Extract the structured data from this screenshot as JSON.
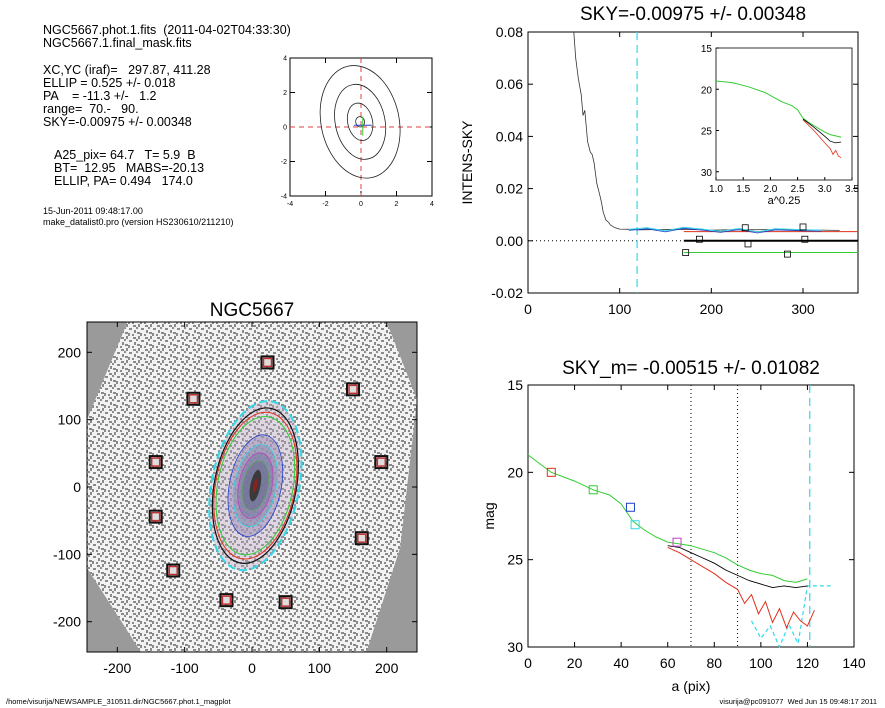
{
  "header_info": {
    "lines_a": [
      "NGC5667.phot.1.fits  (2011-04-02T04:33:30)",
      "NGC5667.1.final_mask.fits"
    ],
    "lines_b": [
      "XC,YC (iraf)=   297.87, 411.28",
      "ELLIP = 0.525 +/- 0.018",
      "PA    = -11.3 +/-   1.2",
      "range=  70.-   90.",
      "SKY=-0.00975 +/- 0.00348"
    ],
    "lines_c": [
      "A25_pix= 64.7   T= 5.9  B",
      "BT=  12.95   MABS=-20.13",
      "ELLIP, PA= 0.494   174.0"
    ],
    "lines_d": [
      "15-Jun-2011 09:48:17.00",
      "make_datalist0.pro (version HS230610/211210)"
    ]
  },
  "footer": {
    "left": "/home/visurija/NEWSAMPLE_310511.dir/NGC5667.phot.1_magplot",
    "right": "visurija@pc091077  Wed Jun 15 09:48:17 2011"
  },
  "colors": {
    "black": "#000000",
    "red": "#e0301e",
    "green": "#33cc33",
    "blue": "#2040d0",
    "cyan": "#30d8e8",
    "magenta": "#c040c0",
    "gray": "#999999",
    "redline": "#e04040"
  },
  "chart_data": [
    {
      "id": "contour",
      "type": "contour",
      "xlim": [
        -4,
        4
      ],
      "ylim": [
        -4,
        4
      ],
      "xticks": [
        "-4",
        "-2",
        "0",
        "2",
        "4"
      ],
      "yticks": [
        "-4",
        "-2",
        "0",
        "2",
        "4"
      ]
    },
    {
      "id": "sky",
      "type": "line",
      "title": "SKY=-0.00975 +/- 0.00348",
      "xlabel": "",
      "ylabel": "INTENS-SKY",
      "xlim": [
        0,
        360
      ],
      "ylim": [
        -0.02,
        0.08
      ],
      "xticks": [
        "0",
        "100",
        "200",
        "300"
      ],
      "yticks": [
        "-0.02",
        "0.00",
        "0.02",
        "0.04",
        "0.06",
        "0.08"
      ],
      "cyan_dashed_x": 119,
      "profile": [
        [
          50,
          0.08
        ],
        [
          52,
          0.07
        ],
        [
          55,
          0.062
        ],
        [
          58,
          0.056
        ],
        [
          60,
          0.048
        ],
        [
          62,
          0.05
        ],
        [
          65,
          0.038
        ],
        [
          68,
          0.034
        ],
        [
          70,
          0.033
        ],
        [
          72,
          0.03
        ],
        [
          75,
          0.022
        ],
        [
          78,
          0.018
        ],
        [
          80,
          0.015
        ],
        [
          82,
          0.011
        ],
        [
          85,
          0.008
        ],
        [
          88,
          0.007
        ],
        [
          90,
          0.006
        ],
        [
          95,
          0.005
        ],
        [
          100,
          0.0045
        ],
        [
          110,
          0.0044
        ],
        [
          120,
          0.0042
        ],
        [
          140,
          0.0043
        ],
        [
          160,
          0.0044
        ],
        [
          180,
          0.0043
        ],
        [
          200,
          0.0041
        ],
        [
          220,
          0.0042
        ],
        [
          240,
          0.0042
        ],
        [
          260,
          0.0043
        ],
        [
          280,
          0.0042
        ],
        [
          300,
          0.0041
        ],
        [
          320,
          0.0041
        ],
        [
          340,
          0.004
        ]
      ],
      "boxes": [
        [
          172,
          -0.0045
        ],
        [
          187,
          0.0006
        ],
        [
          237,
          0.005
        ],
        [
          240,
          -0.0012
        ],
        [
          283,
          -0.0051
        ],
        [
          300,
          0.0053
        ],
        [
          302,
          0.0006
        ]
      ],
      "inset": {
        "xlabel": "a^0.25",
        "xlim": [
          1.0,
          3.5
        ],
        "ylim": [
          15,
          31
        ],
        "xticks": [
          "1.0",
          "1.5",
          "2.0",
          "2.5",
          "3.0",
          "3.5"
        ],
        "yticks": [
          "15",
          "20",
          "25",
          "30"
        ],
        "green": [
          [
            1.0,
            19.0
          ],
          [
            1.3,
            19.2
          ],
          [
            1.6,
            19.7
          ],
          [
            1.9,
            20.4
          ],
          [
            2.2,
            21.5
          ],
          [
            2.4,
            22.0
          ],
          [
            2.5,
            22.5
          ],
          [
            2.6,
            23.5
          ],
          [
            2.7,
            24.0
          ],
          [
            2.8,
            24.4
          ],
          [
            2.9,
            24.8
          ],
          [
            3.0,
            25.2
          ],
          [
            3.1,
            25.5
          ],
          [
            3.3,
            25.8
          ]
        ],
        "black": [
          [
            2.6,
            23.6
          ],
          [
            2.8,
            24.6
          ],
          [
            3.0,
            25.7
          ],
          [
            3.1,
            26.3
          ],
          [
            3.2,
            26.5
          ],
          [
            3.3,
            26.4
          ]
        ],
        "red": [
          [
            2.6,
            23.7
          ],
          [
            2.8,
            25.0
          ],
          [
            3.0,
            26.5
          ],
          [
            3.1,
            27.2
          ],
          [
            3.15,
            27.9
          ],
          [
            3.2,
            27.4
          ],
          [
            3.25,
            28.1
          ],
          [
            3.3,
            28.3
          ]
        ]
      }
    },
    {
      "id": "image",
      "type": "image",
      "title": "NGC5667",
      "xlim": [
        -245,
        245
      ],
      "ylim": [
        -245,
        245
      ],
      "xticks": [
        "-200",
        "-100",
        "0",
        "100",
        "200"
      ],
      "yticks": [
        "-200",
        "-100",
        "0",
        "100",
        "200"
      ],
      "mask_boxes": [
        [
          23,
          185
        ],
        [
          -87,
          131
        ],
        [
          150,
          145
        ],
        [
          -143,
          37
        ],
        [
          -143,
          -44
        ],
        [
          192,
          37
        ],
        [
          163,
          -76
        ],
        [
          -117,
          -124
        ],
        [
          -38,
          -168
        ],
        [
          50,
          -171
        ]
      ],
      "ellipse": {
        "cx": 5,
        "cy": 2,
        "a": 130,
        "b": 62,
        "pa_deg": -11.3
      }
    },
    {
      "id": "mag",
      "type": "line",
      "title": "SKY_m= -0.00515 +/- 0.01082",
      "xlabel": "a (pix)",
      "ylabel": "mag",
      "xlim": [
        0,
        140
      ],
      "ylim": [
        15,
        30
      ],
      "xticks": [
        "0",
        "20",
        "40",
        "60",
        "80",
        "100",
        "120",
        "140"
      ],
      "yticks": [
        "15",
        "20",
        "25",
        "30"
      ],
      "dotted_x": [
        70,
        90
      ],
      "cyan_dashed_x": 121,
      "green": [
        [
          0,
          19.0
        ],
        [
          5,
          19.5
        ],
        [
          10,
          20.0
        ],
        [
          20,
          20.5
        ],
        [
          28,
          21.0
        ],
        [
          35,
          21.3
        ],
        [
          40,
          21.8
        ],
        [
          45,
          22.8
        ],
        [
          50,
          23.3
        ],
        [
          55,
          23.7
        ],
        [
          60,
          24.0
        ],
        [
          65,
          24.1
        ],
        [
          70,
          24.2
        ],
        [
          75,
          24.4
        ],
        [
          80,
          24.6
        ],
        [
          85,
          24.9
        ],
        [
          90,
          25.3
        ],
        [
          95,
          25.6
        ],
        [
          100,
          25.8
        ],
        [
          105,
          25.9
        ],
        [
          110,
          26.2
        ],
        [
          115,
          26.3
        ],
        [
          120,
          26.1
        ]
      ],
      "black": [
        [
          60,
          24.2
        ],
        [
          65,
          24.3
        ],
        [
          70,
          24.6
        ],
        [
          75,
          24.9
        ],
        [
          80,
          25.2
        ],
        [
          85,
          25.6
        ],
        [
          90,
          25.9
        ],
        [
          95,
          26.2
        ],
        [
          100,
          26.4
        ],
        [
          105,
          26.6
        ],
        [
          110,
          26.5
        ],
        [
          115,
          26.6
        ],
        [
          120,
          26.5
        ]
      ],
      "red": [
        [
          60,
          24.3
        ],
        [
          65,
          24.6
        ],
        [
          70,
          25.0
        ],
        [
          75,
          25.4
        ],
        [
          80,
          25.8
        ],
        [
          85,
          26.3
        ],
        [
          90,
          26.7
        ],
        [
          93,
          27.5
        ],
        [
          96,
          27.0
        ],
        [
          99,
          28.1
        ],
        [
          102,
          27.4
        ],
        [
          105,
          28.6
        ],
        [
          108,
          27.8
        ],
        [
          111,
          28.9
        ],
        [
          114,
          28.0
        ],
        [
          117,
          28.5
        ],
        [
          120,
          28.8
        ],
        [
          123,
          27.9
        ]
      ],
      "cyan_tail": [
        [
          96,
          28.5
        ],
        [
          100,
          29.5
        ],
        [
          104,
          28.8
        ],
        [
          108,
          30.0
        ],
        [
          112,
          28.7
        ],
        [
          116,
          29.8
        ],
        [
          120,
          26.5
        ],
        [
          125,
          26.5
        ],
        [
          130,
          26.5
        ]
      ],
      "boxes": [
        {
          "x": 10,
          "y": 20.0,
          "c": "red"
        },
        {
          "x": 28,
          "y": 21.0,
          "c": "green"
        },
        {
          "x": 44,
          "y": 22.0,
          "c": "blue"
        },
        {
          "x": 46,
          "y": 23.0,
          "c": "cyan"
        },
        {
          "x": 64,
          "y": 24.0,
          "c": "magenta"
        }
      ]
    }
  ]
}
